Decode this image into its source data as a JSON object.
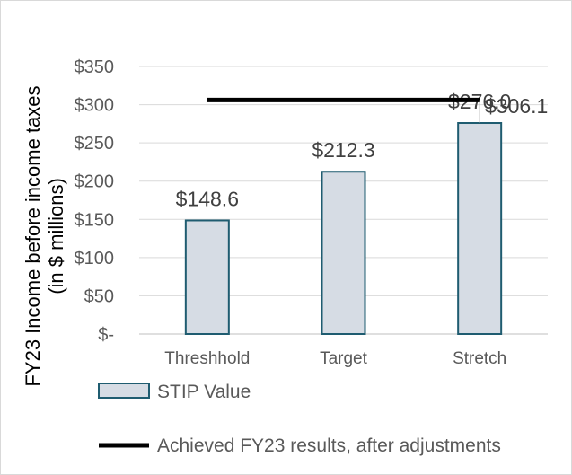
{
  "chart_data": {
    "type": "bar",
    "categories": [
      "Threshhold",
      "Target",
      "Stretch"
    ],
    "series": [
      {
        "name": "STIP Value",
        "values": [
          148.6,
          212.3,
          276.0
        ],
        "labels": [
          "$148.6",
          "$212.3",
          "$276.0"
        ],
        "color": "#d6dce4",
        "stroke": "#1f5c70"
      }
    ],
    "reference_line": {
      "name": "Achieved FY23 results, after adjustments",
      "value": 306.1,
      "label": "$306.1",
      "color": "#000000"
    },
    "ylabel_lines": [
      "FY23 Income before income taxes",
      "(in $ millions)"
    ],
    "ylim": [
      0,
      350
    ],
    "yticks": [
      0,
      50,
      100,
      150,
      200,
      250,
      300,
      350
    ],
    "ytick_labels": [
      "$-",
      "$50",
      "$100",
      "$150",
      "$200",
      "$250",
      "$300",
      "$350"
    ],
    "grid": true,
    "legend_position": "bottom-left",
    "colors": {
      "grid": "#d9d9d9",
      "axis": "#bfbfbf"
    }
  }
}
